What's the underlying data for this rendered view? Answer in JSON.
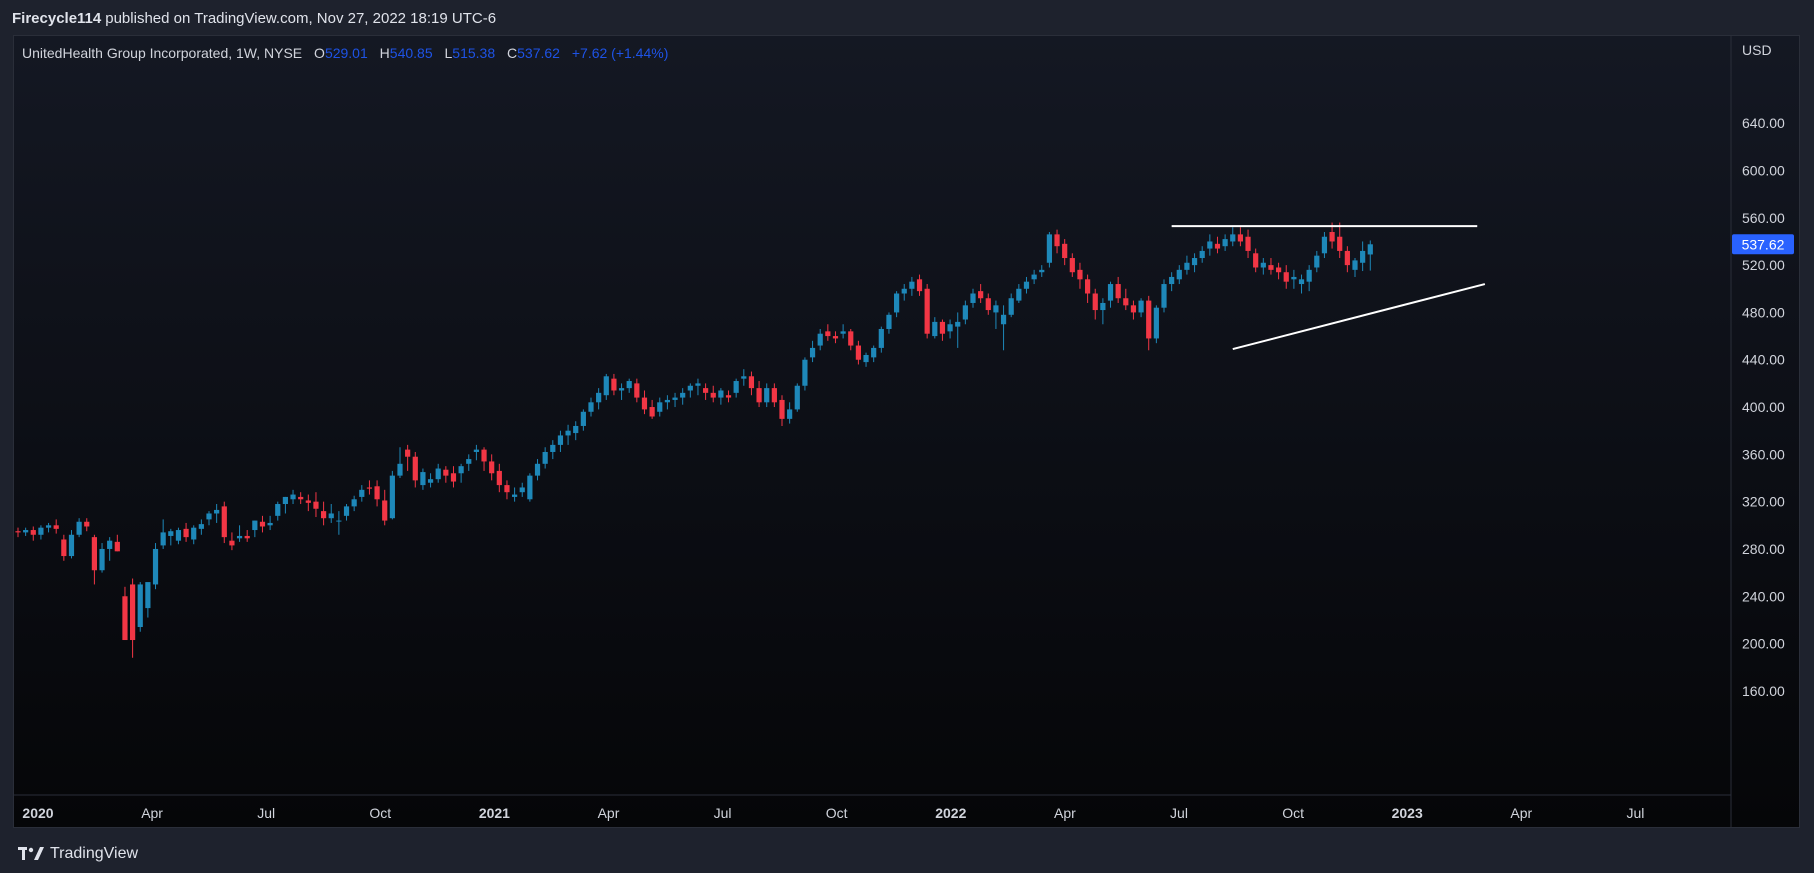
{
  "header": {
    "author": "Firecycle114",
    "published_text": "published on TradingView.com, Nov 27, 2022 18:19 UTC-6"
  },
  "legend": {
    "symbol": "UnitedHealth Group Incorporated, 1W, NYSE",
    "o_label": "O",
    "o_value": "529.01",
    "h_label": "H",
    "h_value": "540.85",
    "l_label": "L",
    "l_value": "515.38",
    "c_label": "C",
    "c_value": "537.62",
    "change": "+7.62 (+1.44%)"
  },
  "footer": {
    "brand": "TradingView"
  },
  "colors": {
    "up": "#1e88b9",
    "down": "#f23645",
    "price_tag": "#2962ff",
    "trendline": "#ffffff"
  },
  "chart_data": {
    "type": "candlestick",
    "currency": "USD",
    "current_price": "537.62",
    "y_ticks": [
      "640.00",
      "600.00",
      "560.00",
      "520.00",
      "480.00",
      "440.00",
      "400.00",
      "360.00",
      "320.00",
      "280.00",
      "240.00",
      "200.00",
      "160.00"
    ],
    "ylim": [
      115,
      665
    ],
    "x_ticks": [
      "2020",
      "Apr",
      "Jul",
      "Oct",
      "2021",
      "Apr",
      "Jul",
      "Oct",
      "2022",
      "Apr",
      "Jul",
      "Oct",
      "2023",
      "Apr",
      "Jul"
    ],
    "x_bold": [
      "2020",
      "2021",
      "2022",
      "2023"
    ],
    "candles": [
      [
        295,
        298,
        290,
        294
      ],
      [
        294,
        298,
        291,
        296
      ],
      [
        296,
        299,
        287,
        292
      ],
      [
        292,
        300,
        288,
        298
      ],
      [
        298,
        302,
        294,
        300
      ],
      [
        300,
        305,
        293,
        297
      ],
      [
        288,
        292,
        270,
        274
      ],
      [
        274,
        296,
        272,
        292
      ],
      [
        292,
        306,
        290,
        303
      ],
      [
        303,
        306,
        295,
        299
      ],
      [
        290,
        292,
        250,
        262
      ],
      [
        262,
        285,
        260,
        280
      ],
      [
        280,
        290,
        270,
        287
      ],
      [
        286,
        292,
        278,
        278
      ],
      [
        240,
        248,
        207,
        203
      ],
      [
        250,
        255,
        188,
        203
      ],
      [
        214,
        252,
        210,
        250
      ],
      [
        230,
        250,
        222,
        252
      ],
      [
        250,
        285,
        246,
        280
      ],
      [
        283,
        305,
        280,
        294
      ],
      [
        291,
        297,
        283,
        295
      ],
      [
        287,
        298,
        284,
        296
      ],
      [
        297,
        302,
        286,
        290
      ],
      [
        288,
        300,
        284,
        298
      ],
      [
        297,
        305,
        292,
        301
      ],
      [
        305,
        312,
        300,
        310
      ],
      [
        310,
        318,
        302,
        313
      ],
      [
        316,
        320,
        285,
        290
      ],
      [
        287,
        294,
        279,
        283
      ],
      [
        289,
        300,
        286,
        291
      ],
      [
        291,
        296,
        286,
        289
      ],
      [
        296,
        304,
        290,
        304
      ],
      [
        303,
        308,
        294,
        299
      ],
      [
        300,
        308,
        296,
        302
      ],
      [
        308,
        320,
        304,
        318
      ],
      [
        318,
        324,
        310,
        324
      ],
      [
        322,
        330,
        318,
        326
      ],
      [
        324,
        328,
        318,
        322
      ],
      [
        321,
        326,
        312,
        319
      ],
      [
        320,
        328,
        307,
        314
      ],
      [
        312,
        320,
        300,
        306
      ],
      [
        306,
        318,
        302,
        310
      ],
      [
        304,
        312,
        292,
        304
      ],
      [
        308,
        318,
        304,
        316
      ],
      [
        316,
        325,
        312,
        322
      ],
      [
        324,
        334,
        320,
        330
      ],
      [
        332,
        338,
        326,
        331
      ],
      [
        333,
        338,
        316,
        322
      ],
      [
        321,
        330,
        300,
        304
      ],
      [
        306,
        346,
        305,
        342
      ],
      [
        342,
        366,
        340,
        352
      ],
      [
        364,
        368,
        346,
        358
      ],
      [
        358,
        362,
        332,
        338
      ],
      [
        334,
        348,
        330,
        345
      ],
      [
        336,
        344,
        332,
        339
      ],
      [
        339,
        352,
        336,
        348
      ],
      [
        347,
        350,
        336,
        342
      ],
      [
        344,
        350,
        332,
        337
      ],
      [
        344,
        352,
        336,
        350
      ],
      [
        352,
        360,
        346,
        356
      ],
      [
        362,
        368,
        355,
        364
      ],
      [
        364,
        366,
        346,
        354
      ],
      [
        354,
        360,
        338,
        344
      ],
      [
        346,
        352,
        328,
        334
      ],
      [
        334,
        338,
        322,
        328
      ],
      [
        324,
        332,
        320,
        326
      ],
      [
        328,
        336,
        324,
        332
      ],
      [
        322,
        344,
        320,
        342
      ],
      [
        342,
        356,
        338,
        352
      ],
      [
        352,
        366,
        348,
        362
      ],
      [
        362,
        372,
        356,
        368
      ],
      [
        368,
        380,
        362,
        376
      ],
      [
        376,
        385,
        368,
        380
      ],
      [
        378,
        388,
        372,
        384
      ],
      [
        384,
        398,
        380,
        396
      ],
      [
        396,
        408,
        392,
        404
      ],
      [
        404,
        416,
        398,
        412
      ],
      [
        410,
        428,
        406,
        426
      ],
      [
        424,
        428,
        410,
        414
      ],
      [
        414,
        420,
        406,
        416
      ],
      [
        416,
        424,
        412,
        422
      ],
      [
        420,
        424,
        404,
        408
      ],
      [
        408,
        414,
        394,
        398
      ],
      [
        400,
        406,
        390,
        392
      ],
      [
        396,
        408,
        392,
        404
      ],
      [
        404,
        410,
        398,
        406
      ],
      [
        406,
        412,
        400,
        408
      ],
      [
        408,
        416,
        402,
        412
      ],
      [
        414,
        420,
        408,
        418
      ],
      [
        418,
        424,
        410,
        420
      ],
      [
        416,
        420,
        406,
        412
      ],
      [
        412,
        418,
        404,
        408
      ],
      [
        408,
        416,
        402,
        414
      ],
      [
        410,
        414,
        404,
        408
      ],
      [
        412,
        424,
        408,
        422
      ],
      [
        424,
        432,
        418,
        426
      ],
      [
        426,
        430,
        410,
        416
      ],
      [
        416,
        422,
        400,
        404
      ],
      [
        404,
        420,
        400,
        416
      ],
      [
        416,
        420,
        400,
        404
      ],
      [
        406,
        410,
        384,
        390
      ],
      [
        390,
        404,
        386,
        398
      ],
      [
        398,
        420,
        396,
        418
      ],
      [
        418,
        442,
        414,
        440
      ],
      [
        442,
        456,
        438,
        450
      ],
      [
        452,
        466,
        448,
        462
      ],
      [
        464,
        470,
        456,
        460
      ],
      [
        460,
        464,
        454,
        458
      ],
      [
        462,
        470,
        458,
        464
      ],
      [
        464,
        466,
        448,
        452
      ],
      [
        452,
        456,
        436,
        440
      ],
      [
        438,
        446,
        434,
        444
      ],
      [
        442,
        452,
        438,
        450
      ],
      [
        450,
        468,
        446,
        466
      ],
      [
        466,
        480,
        462,
        478
      ],
      [
        480,
        498,
        476,
        496
      ],
      [
        496,
        504,
        490,
        500
      ],
      [
        500,
        510,
        494,
        506
      ],
      [
        508,
        512,
        494,
        498
      ],
      [
        500,
        504,
        458,
        462
      ],
      [
        460,
        476,
        458,
        472
      ],
      [
        472,
        474,
        456,
        462
      ],
      [
        464,
        474,
        458,
        470
      ],
      [
        468,
        480,
        450,
        472
      ],
      [
        474,
        490,
        470,
        486
      ],
      [
        488,
        500,
        484,
        496
      ],
      [
        498,
        504,
        488,
        492
      ],
      [
        492,
        496,
        478,
        482
      ],
      [
        480,
        490,
        466,
        486
      ],
      [
        470,
        486,
        448,
        478
      ],
      [
        478,
        496,
        476,
        492
      ],
      [
        490,
        504,
        488,
        500
      ],
      [
        500,
        510,
        496,
        506
      ],
      [
        508,
        516,
        504,
        512
      ],
      [
        514,
        520,
        510,
        516
      ],
      [
        522,
        548,
        518,
        546
      ],
      [
        546,
        550,
        530,
        536
      ],
      [
        538,
        542,
        520,
        526
      ],
      [
        526,
        530,
        510,
        514
      ],
      [
        516,
        522,
        500,
        508
      ],
      [
        508,
        512,
        488,
        496
      ],
      [
        496,
        500,
        474,
        482
      ],
      [
        482,
        492,
        470,
        488
      ],
      [
        490,
        506,
        484,
        504
      ],
      [
        504,
        510,
        488,
        492
      ],
      [
        492,
        500,
        482,
        486
      ],
      [
        486,
        490,
        474,
        480
      ],
      [
        480,
        492,
        476,
        490
      ],
      [
        490,
        494,
        448,
        458
      ],
      [
        458,
        486,
        454,
        484
      ],
      [
        484,
        508,
        480,
        504
      ],
      [
        504,
        514,
        498,
        510
      ],
      [
        508,
        520,
        504,
        516
      ],
      [
        516,
        528,
        512,
        522
      ],
      [
        520,
        530,
        514,
        526
      ],
      [
        526,
        536,
        522,
        532
      ],
      [
        534,
        546,
        528,
        540
      ],
      [
        538,
        544,
        530,
        534
      ],
      [
        536,
        546,
        532,
        542
      ],
      [
        540,
        552,
        536,
        546
      ],
      [
        546,
        552,
        536,
        540
      ],
      [
        544,
        550,
        526,
        532
      ],
      [
        530,
        534,
        514,
        518
      ],
      [
        518,
        526,
        512,
        522
      ],
      [
        520,
        526,
        512,
        516
      ],
      [
        518,
        522,
        508,
        514
      ],
      [
        514,
        520,
        500,
        506
      ],
      [
        508,
        516,
        500,
        510
      ],
      [
        504,
        512,
        496,
        508
      ],
      [
        506,
        520,
        498,
        516
      ],
      [
        518,
        532,
        514,
        528
      ],
      [
        530,
        548,
        526,
        544
      ],
      [
        548,
        556,
        534,
        540
      ],
      [
        544,
        556,
        526,
        532
      ],
      [
        532,
        536,
        514,
        520
      ],
      [
        516,
        526,
        510,
        524
      ],
      [
        522,
        540,
        515,
        532
      ],
      [
        529,
        540.85,
        515.38,
        537.62
      ]
    ],
    "overlay_lines": {
      "resistance": {
        "from_index": 151,
        "to_index": 191,
        "price": 553
      },
      "support": {
        "from_index": 159,
        "from_price": 449,
        "to_index": 192,
        "to_price": 504
      }
    }
  }
}
